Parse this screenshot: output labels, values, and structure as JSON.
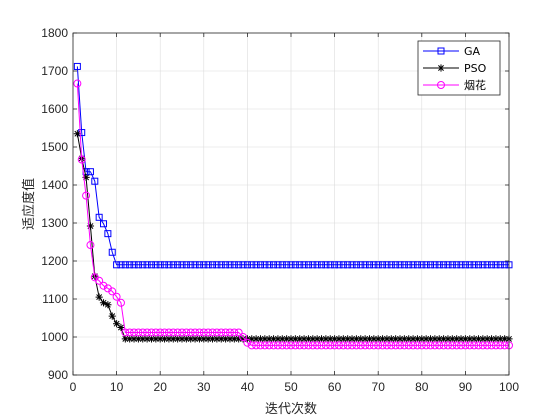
{
  "chart_data": {
    "type": "line",
    "title": "",
    "xlabel": "迭代次数",
    "ylabel": "适应度值",
    "xlim": [
      0,
      100
    ],
    "ylim": [
      900,
      1800
    ],
    "xticks": [
      0,
      10,
      20,
      30,
      40,
      50,
      60,
      70,
      80,
      90,
      100
    ],
    "yticks": [
      900,
      1000,
      1100,
      1200,
      1300,
      1400,
      1500,
      1600,
      1700,
      1800
    ],
    "xtick_labels": [
      "0",
      "10",
      "20",
      "30",
      "40",
      "50",
      "60",
      "70",
      "80",
      "90",
      "100"
    ],
    "ytick_labels": [
      "900",
      "1000",
      "1100",
      "1200",
      "1300",
      "1400",
      "1500",
      "1600",
      "1700",
      "1800"
    ],
    "grid": true,
    "legend_position": "top-right",
    "series": [
      {
        "name": "GA",
        "color": "#0000ff",
        "marker": "square",
        "x": [
          1,
          2,
          3,
          4,
          5,
          6,
          7,
          8,
          9,
          10,
          100
        ],
        "values": [
          1712,
          1538,
          1435,
          1435,
          1410,
          1315,
          1298,
          1272,
          1223,
          1190,
          1190
        ]
      },
      {
        "name": "PSO",
        "color": "#000000",
        "marker": "star",
        "x": [
          1,
          2,
          3,
          4,
          5,
          6,
          7,
          8,
          9,
          10,
          11,
          12,
          100
        ],
        "values": [
          1535,
          1470,
          1420,
          1292,
          1160,
          1105,
          1090,
          1085,
          1055,
          1035,
          1025,
          995,
          995
        ]
      },
      {
        "name": "烟花",
        "color": "#ff00ff",
        "marker": "circle",
        "x": [
          1,
          2,
          3,
          4,
          5,
          6,
          7,
          8,
          9,
          10,
          11,
          12,
          38,
          39,
          40,
          41,
          100
        ],
        "values": [
          1667,
          1467,
          1372,
          1242,
          1157,
          1148,
          1135,
          1128,
          1120,
          1106,
          1090,
          1012,
          1012,
          1000,
          985,
          978,
          978
        ]
      }
    ]
  }
}
